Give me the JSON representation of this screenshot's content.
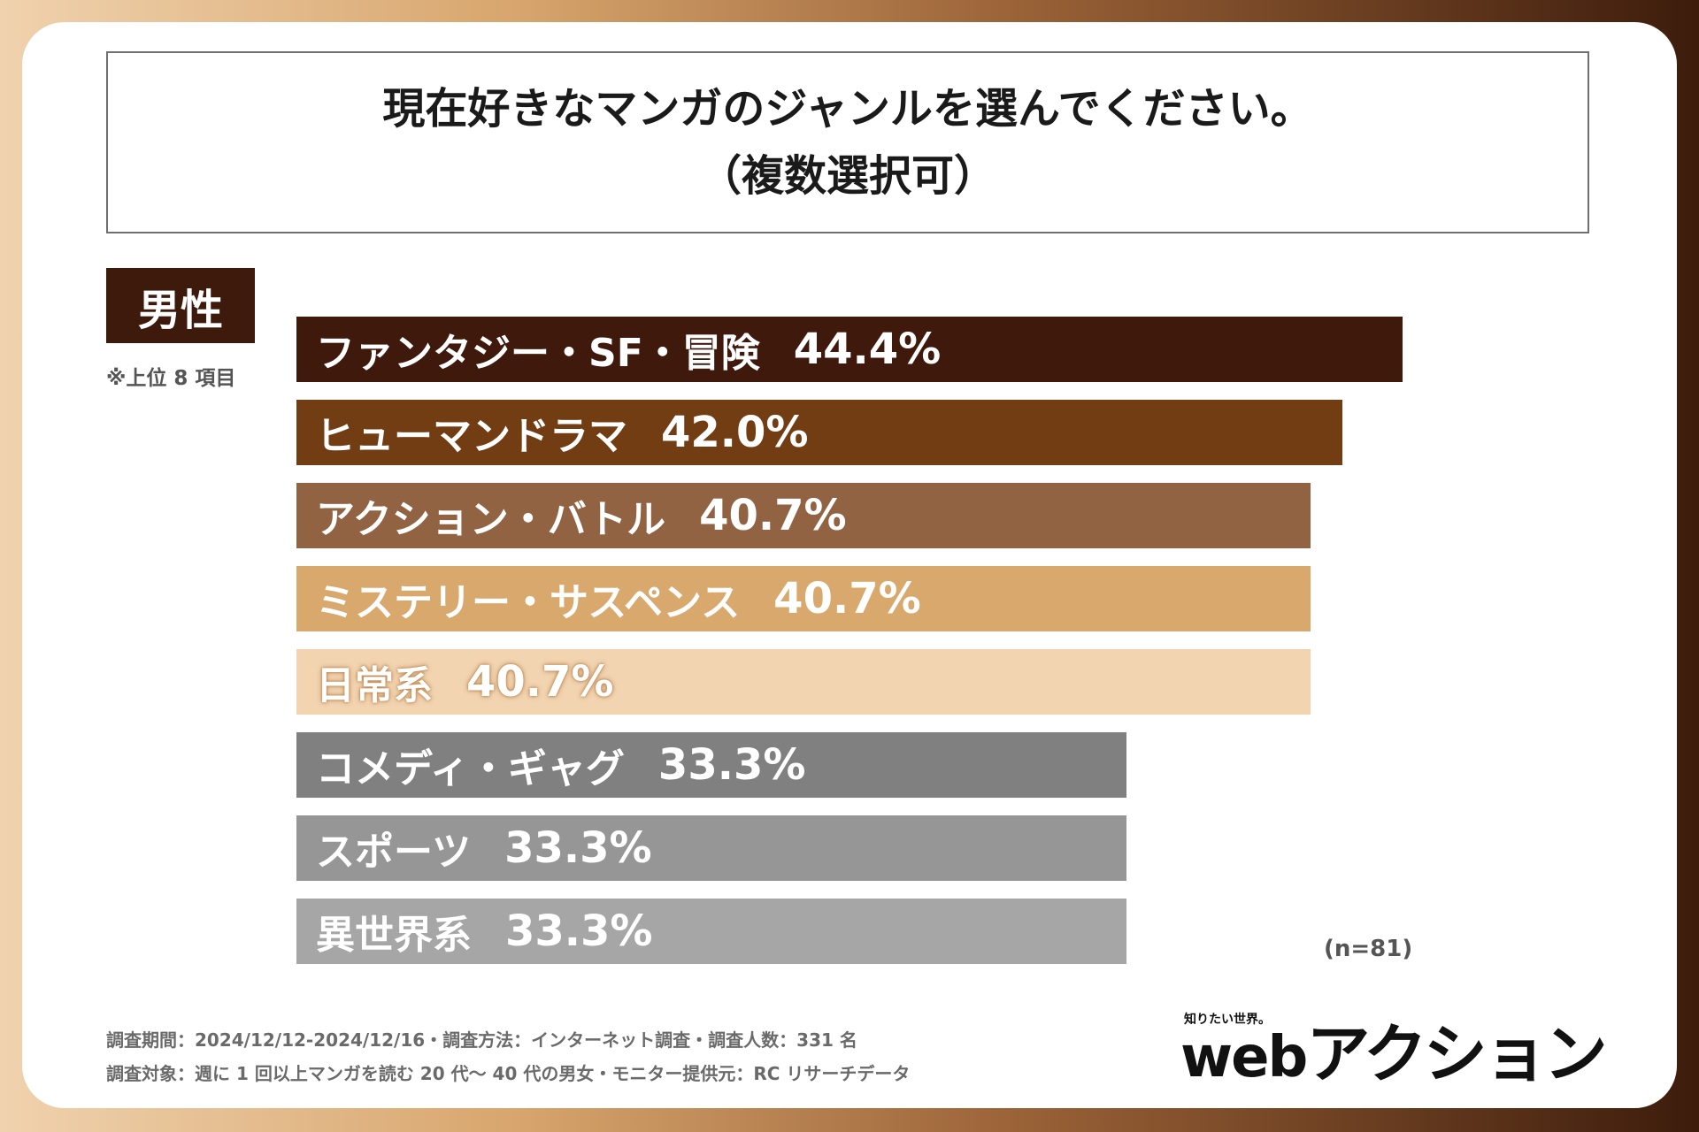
{
  "title": {
    "line1": "現在好きなマンガのジャンルを選んでください。",
    "line2": "（複数選択可）"
  },
  "gender_label": "男性",
  "note": "※上位 8 項目",
  "sample_size": "(n=81)",
  "footer": {
    "line1": "調査期間：2024/12/12-2024/12/16・調査方法：インターネット調査・調査人数：331 名",
    "line2": "調査対象：週に 1 回以上マンガを読む 20 代〜 40 代の男女・モニター提供元：RC リサーチデータ"
  },
  "logo": {
    "tagline": "知りたい世界。",
    "web": "web",
    "name": "アクション"
  },
  "chart_data": {
    "type": "bar",
    "orientation": "horizontal",
    "title": "現在好きなマンガのジャンルを選んでください。（複数選択可）",
    "xlabel": "",
    "ylabel": "",
    "xlim": [
      0,
      44.4
    ],
    "categories": [
      "ファンタジー・SF・冒険",
      "ヒューマンドラマ",
      "アクション・バトル",
      "ミステリー・サスペンス",
      "日常系",
      "コメディ・ギャグ",
      "スポーツ",
      "異世界系"
    ],
    "values": [
      44.4,
      42.0,
      40.7,
      40.7,
      40.7,
      33.3,
      33.3,
      33.3
    ],
    "labels": [
      "44.4%",
      "42.0%",
      "40.7%",
      "40.7%",
      "40.7%",
      "33.3%",
      "33.3%",
      "33.3%"
    ],
    "colors": [
      "#40190d",
      "#733d13",
      "#926343",
      "#d8a86c",
      "#f2d4b1",
      "#808080",
      "#969696",
      "#a6a6a6"
    ]
  }
}
